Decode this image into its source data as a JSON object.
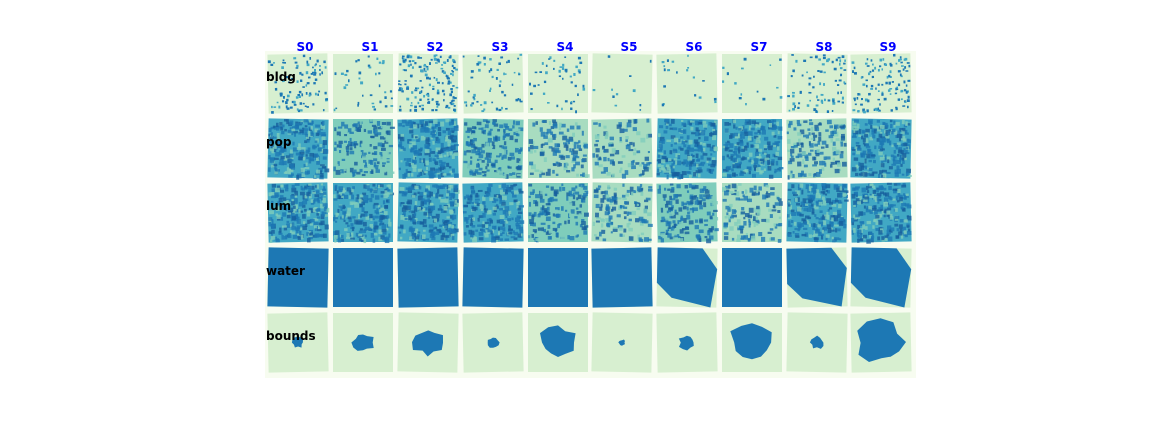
{
  "chart_data": {
    "type": "heatmap",
    "layout": "image-grid",
    "title": "",
    "columns": [
      "S0",
      "S1",
      "S2",
      "S3",
      "S4",
      "S5",
      "S6",
      "S7",
      "S8",
      "S9"
    ],
    "rows": [
      "bldg",
      "pop",
      "lum",
      "water",
      "bounds"
    ],
    "colormap": "YlGnBu",
    "column_label_color": "#0000ff",
    "row_label_color": "#000000",
    "panel_background": "#f7fcf0",
    "colors": {
      "low": "#d7efd0",
      "mid_low": "#7fcdbb",
      "mid": "#41a8c4",
      "high": "#1d78b4",
      "very_high": "#165f9e"
    },
    "panels": [
      {
        "row": "bldg",
        "tiles": [
          {
            "col": "S0",
            "fill_level": 0.25
          },
          {
            "col": "S1",
            "fill_level": 0.1
          },
          {
            "col": "S2",
            "fill_level": 0.4
          },
          {
            "col": "S3",
            "fill_level": 0.15
          },
          {
            "col": "S4",
            "fill_level": 0.12
          },
          {
            "col": "S5",
            "fill_level": 0.03
          },
          {
            "col": "S6",
            "fill_level": 0.05
          },
          {
            "col": "S7",
            "fill_level": 0.04
          },
          {
            "col": "S8",
            "fill_level": 0.2
          },
          {
            "col": "S9",
            "fill_level": 0.3
          }
        ]
      },
      {
        "row": "pop",
        "tiles": [
          {
            "col": "S0",
            "fill_level": 0.8
          },
          {
            "col": "S1",
            "fill_level": 0.55
          },
          {
            "col": "S2",
            "fill_level": 0.85
          },
          {
            "col": "S3",
            "fill_level": 0.7
          },
          {
            "col": "S4",
            "fill_level": 0.45
          },
          {
            "col": "S5",
            "fill_level": 0.35
          },
          {
            "col": "S6",
            "fill_level": 0.8
          },
          {
            "col": "S7",
            "fill_level": 0.8
          },
          {
            "col": "S8",
            "fill_level": 0.5
          },
          {
            "col": "S9",
            "fill_level": 0.8
          }
        ]
      },
      {
        "row": "lum",
        "tiles": [
          {
            "col": "S0",
            "fill_level": 0.85
          },
          {
            "col": "S1",
            "fill_level": 0.8
          },
          {
            "col": "S2",
            "fill_level": 0.9
          },
          {
            "col": "S3",
            "fill_level": 0.75
          },
          {
            "col": "S4",
            "fill_level": 0.6
          },
          {
            "col": "S5",
            "fill_level": 0.5
          },
          {
            "col": "S6",
            "fill_level": 0.65
          },
          {
            "col": "S7",
            "fill_level": 0.5
          },
          {
            "col": "S8",
            "fill_level": 0.8
          },
          {
            "col": "S9",
            "fill_level": 0.8
          }
        ]
      },
      {
        "row": "water",
        "tiles": [
          {
            "col": "S0",
            "fill_level": 1.0
          },
          {
            "col": "S1",
            "fill_level": 1.0
          },
          {
            "col": "S2",
            "fill_level": 1.0
          },
          {
            "col": "S3",
            "fill_level": 1.0
          },
          {
            "col": "S4",
            "fill_level": 1.0
          },
          {
            "col": "S5",
            "fill_level": 1.0
          },
          {
            "col": "S6",
            "fill_level": 0.9
          },
          {
            "col": "S7",
            "fill_level": 1.0
          },
          {
            "col": "S8",
            "fill_level": 0.9
          },
          {
            "col": "S9",
            "fill_level": 0.9
          }
        ]
      },
      {
        "row": "bounds",
        "tiles": [
          {
            "col": "S0",
            "fill_level": 0.03
          },
          {
            "col": "S1",
            "fill_level": 0.1
          },
          {
            "col": "S2",
            "fill_level": 0.2
          },
          {
            "col": "S3",
            "fill_level": 0.03
          },
          {
            "col": "S4",
            "fill_level": 0.35
          },
          {
            "col": "S5",
            "fill_level": 0.01
          },
          {
            "col": "S6",
            "fill_level": 0.06
          },
          {
            "col": "S7",
            "fill_level": 0.45
          },
          {
            "col": "S8",
            "fill_level": 0.05
          },
          {
            "col": "S9",
            "fill_level": 0.55
          }
        ]
      }
    ]
  }
}
